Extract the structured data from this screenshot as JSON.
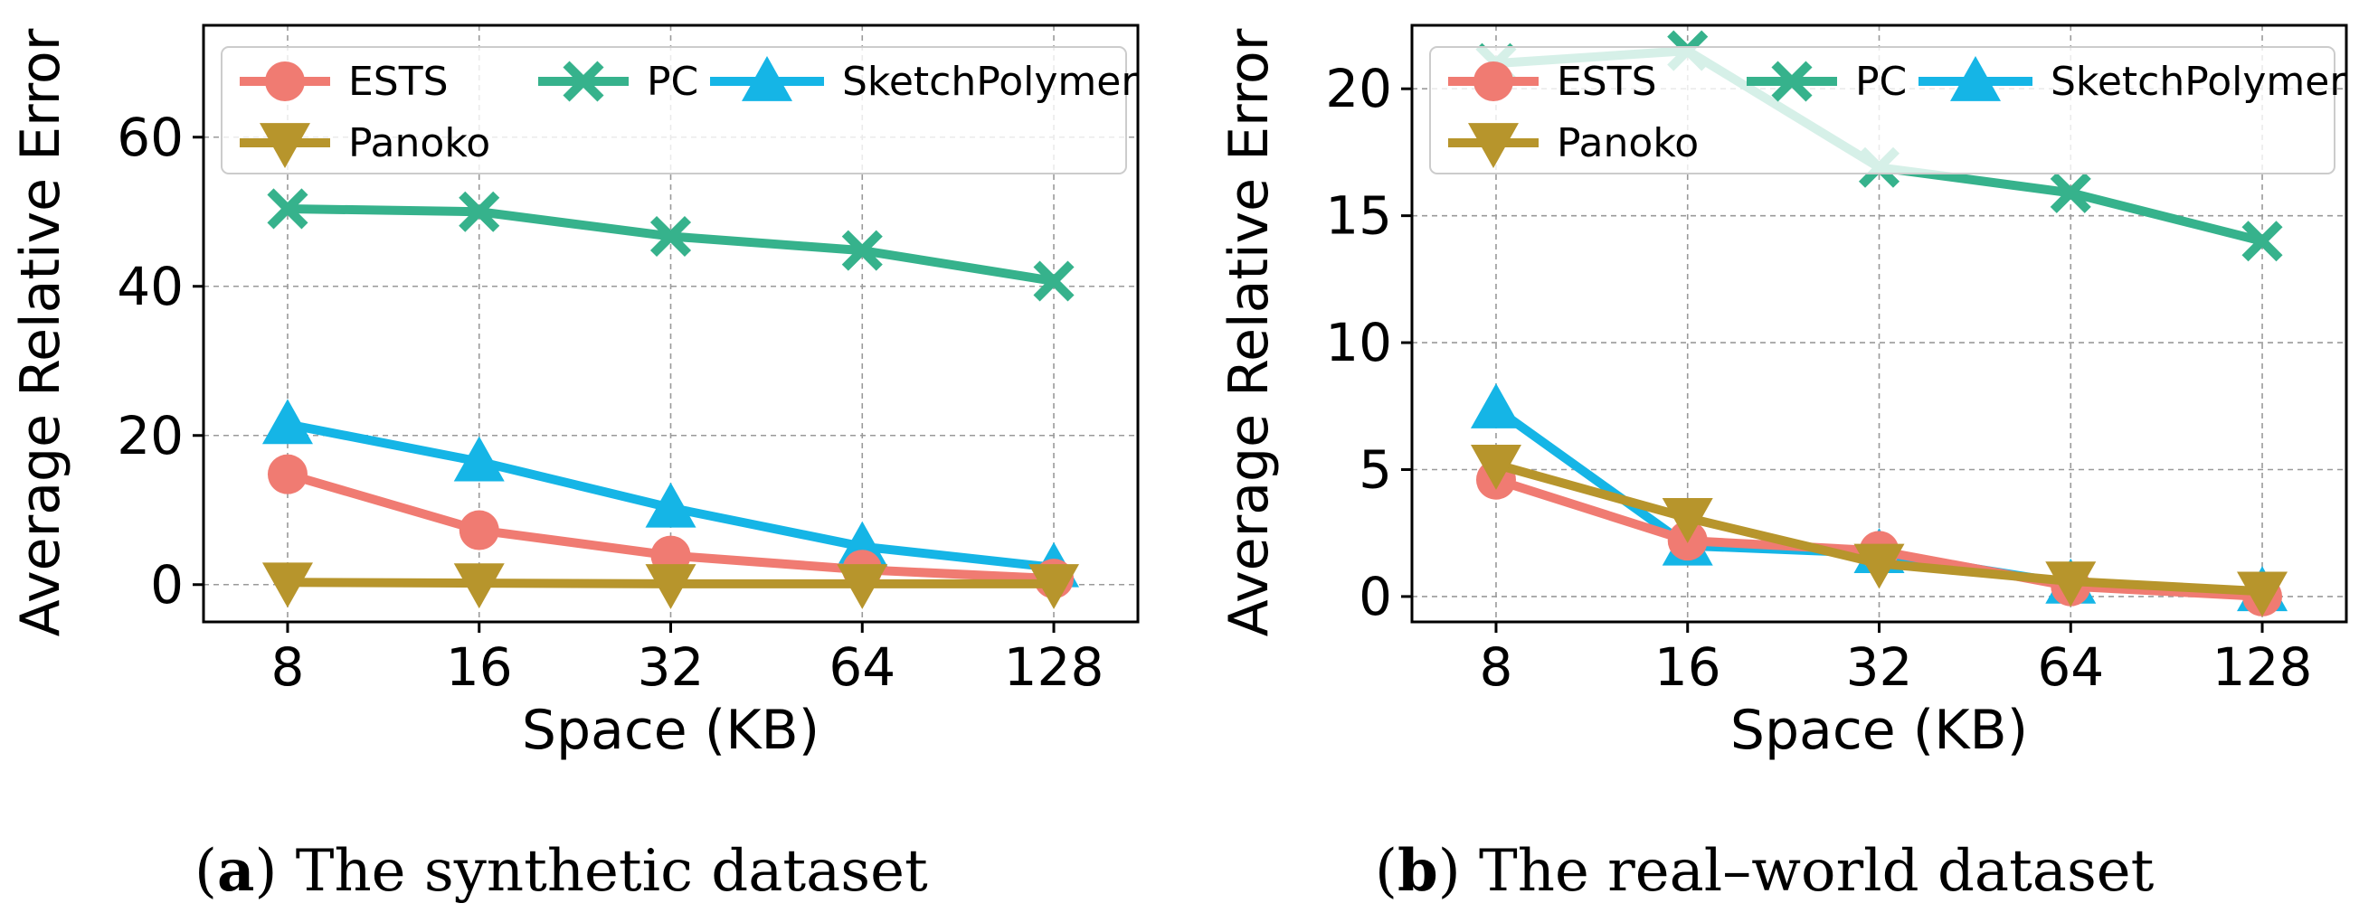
{
  "colors": {
    "ESTS": "#f07b72",
    "PC": "#36b28c",
    "SketchPolymer": "#15b5e6",
    "Panoko": "#b7952c"
  },
  "chart_data": [
    {
      "type": "line",
      "xlabel": "Space (KB)",
      "ylabel": "Average Relative Error",
      "categories": [
        "8",
        "16",
        "32",
        "64",
        "128"
      ],
      "ylim": [
        -5,
        75
      ],
      "yticks": [
        0,
        20,
        40,
        60
      ],
      "grid": true,
      "legend": "top",
      "caption_label": "a",
      "caption_text": ") The synthetic dataset",
      "series": [
        {
          "name": "ESTS",
          "marker": "circle",
          "values": [
            14.8,
            7.3,
            3.9,
            2.0,
            0.8
          ]
        },
        {
          "name": "PC",
          "marker": "x",
          "values": [
            50.4,
            50.0,
            46.7,
            44.8,
            40.7
          ]
        },
        {
          "name": "SketchPolymer",
          "marker": "triangle-up",
          "values": [
            21.5,
            16.5,
            10.3,
            5.1,
            2.3
          ]
        },
        {
          "name": "Panoko",
          "marker": "triangle-down",
          "values": [
            0.3,
            0.2,
            0.1,
            0.1,
            0.1
          ]
        }
      ]
    },
    {
      "type": "line",
      "xlabel": "Space (KB)",
      "ylabel": "Average Relative Error",
      "categories": [
        "8",
        "16",
        "32",
        "64",
        "128"
      ],
      "ylim": [
        -1,
        22.5
      ],
      "yticks": [
        0,
        5,
        10,
        15,
        20
      ],
      "grid": true,
      "legend": "top",
      "caption_label": "b",
      "caption_text": ") The real–world dataset",
      "series": [
        {
          "name": "ESTS",
          "marker": "circle",
          "values": [
            4.6,
            2.2,
            1.8,
            0.4,
            0.0
          ]
        },
        {
          "name": "PC",
          "marker": "x",
          "values": [
            21.0,
            21.5,
            16.9,
            15.9,
            14.0
          ]
        },
        {
          "name": "SketchPolymer",
          "marker": "triangle-up",
          "values": [
            7.4,
            2.0,
            1.7,
            0.5,
            0.2
          ]
        },
        {
          "name": "Panoko",
          "marker": "triangle-down",
          "values": [
            5.2,
            3.1,
            1.3,
            0.6,
            0.2
          ]
        }
      ]
    }
  ]
}
